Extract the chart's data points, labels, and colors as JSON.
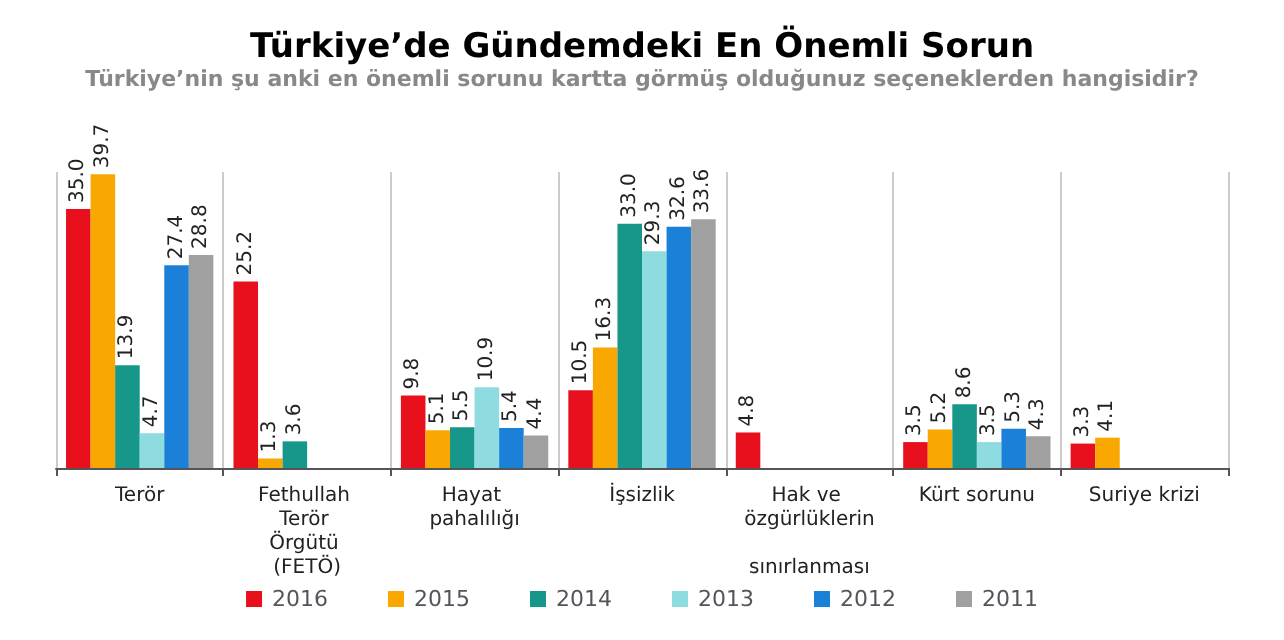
{
  "chart_data": {
    "type": "bar",
    "title": "Türkiye’de Gündemdeki En Önemli Sorun",
    "subtitle": "Türkiye’nin şu anki en önemli sorunu kartta görmüş olduğunuz seçeneklerden hangisidir?",
    "categories": [
      "Terör",
      "Fethullah Terör Örgütü (FETÖ)",
      "Hayat pahalılığı",
      "İşsizlik",
      "Hak ve özgürlüklerin sınırlanması",
      "Kürt sorunu",
      "Suriye krizi"
    ],
    "series": [
      {
        "name": "2016",
        "color": "#e8101c",
        "values": [
          35.0,
          25.2,
          9.8,
          10.5,
          4.8,
          3.5,
          3.3
        ],
        "value_labels": [
          "35.0",
          "25.2",
          "9.8",
          "10.5",
          "4.8",
          "3.5",
          "3.3"
        ]
      },
      {
        "name": "2015",
        "color": "#f8a800",
        "values": [
          39.7,
          1.3,
          5.1,
          16.3,
          null,
          5.2,
          4.1
        ],
        "value_labels": [
          "39.7",
          "1.3",
          "5.1",
          "16.3",
          null,
          "5.2",
          "4.1"
        ]
      },
      {
        "name": "2014",
        "color": "#16978a",
        "values": [
          13.9,
          3.6,
          5.5,
          33.0,
          null,
          8.6,
          null
        ],
        "value_labels": [
          "13.9",
          "3.6",
          "5.5",
          "33.0",
          null,
          "8.6",
          null
        ]
      },
      {
        "name": "2013",
        "color": "#8fdce0",
        "values": [
          4.7,
          null,
          10.9,
          29.3,
          null,
          3.5,
          null
        ],
        "value_labels": [
          "4.7",
          null,
          "10.9",
          "29.3",
          null,
          "3.5",
          null
        ]
      },
      {
        "name": "2012",
        "color": "#1a80d8",
        "values": [
          27.4,
          null,
          5.4,
          32.6,
          null,
          5.3,
          null
        ],
        "value_labels": [
          "27.4",
          null,
          "5.4",
          "32.6",
          null,
          "5.3",
          null
        ]
      },
      {
        "name": "2011",
        "color": "#a0a0a0",
        "values": [
          28.8,
          null,
          4.4,
          33.6,
          null,
          4.3,
          null
        ],
        "value_labels": [
          "28.8",
          null,
          "4.4",
          "33.6",
          null,
          "4.3",
          null
        ]
      }
    ],
    "grid": "x",
    "legend": "bottom"
  }
}
